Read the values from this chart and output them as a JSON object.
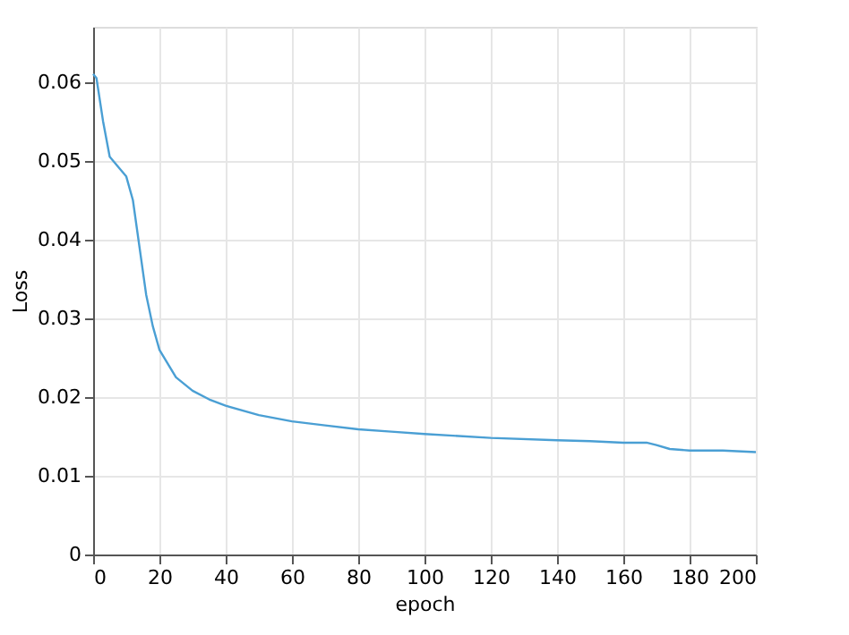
{
  "chart_data": {
    "type": "line",
    "xlabel": "epoch",
    "ylabel": "Loss",
    "x": [
      0,
      1,
      3,
      5,
      8,
      10,
      12,
      14,
      16,
      18,
      20,
      25,
      30,
      35,
      40,
      50,
      60,
      70,
      80,
      90,
      100,
      120,
      140,
      150,
      160,
      167,
      170,
      174,
      180,
      190,
      200
    ],
    "series": [
      {
        "color": "#4a9fd4",
        "values": [
          0.061,
          0.0605,
          0.055,
          0.0505,
          0.049,
          0.048,
          0.045,
          0.039,
          0.033,
          0.029,
          0.026,
          0.0225,
          0.0208,
          0.0197,
          0.0189,
          0.0177,
          0.0169,
          0.0164,
          0.0159,
          0.0156,
          0.0153,
          0.0148,
          0.0145,
          0.0144,
          0.0142,
          0.0142,
          0.0139,
          0.0134,
          0.0132,
          0.0132,
          0.013
        ]
      }
    ],
    "xlim": [
      0,
      200
    ],
    "xticks": [
      0,
      20,
      40,
      60,
      80,
      100,
      120,
      140,
      160,
      180,
      200
    ],
    "ylim": [
      0,
      0.067
    ],
    "yticks": [
      0,
      0.01,
      0.02,
      0.03,
      0.04,
      0.05,
      0.06
    ],
    "grid": true
  }
}
